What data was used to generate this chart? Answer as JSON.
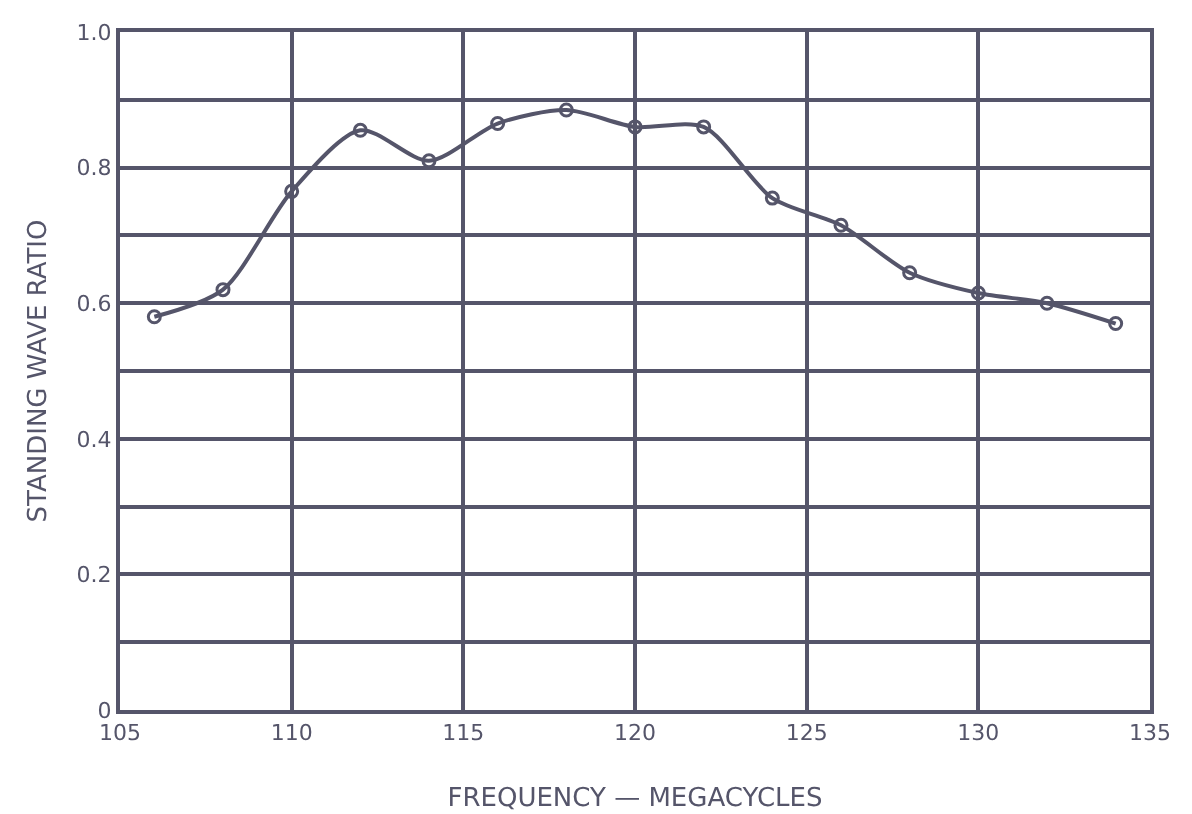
{
  "chart_data": {
    "type": "line",
    "xlabel": "FREQUENCY — MEGACYCLES",
    "ylabel": "STANDING WAVE RATIO",
    "x": [
      106,
      108,
      110,
      112,
      114,
      116,
      118,
      120,
      122,
      124,
      126,
      128,
      130,
      132,
      134
    ],
    "series": [
      {
        "color": "#55556a",
        "values": [
          0.58,
          0.62,
          0.765,
          0.855,
          0.81,
          0.865,
          0.885,
          0.86,
          0.86,
          0.755,
          0.715,
          0.645,
          0.615,
          0.6,
          0.57
        ]
      }
    ],
    "xlim": [
      105,
      135
    ],
    "xticks": [
      105,
      110,
      115,
      120,
      125,
      130,
      135
    ],
    "ylim": [
      0,
      1
    ],
    "yticks": [
      0,
      {
        "value": 0.1,
        "label": null
      },
      0.2,
      {
        "value": 0.3,
        "label": null
      },
      0.4,
      {
        "value": 0.5,
        "label": null
      },
      0.6,
      {
        "value": 0.7,
        "label": null
      },
      0.8,
      {
        "value": 0.9,
        "label": null
      },
      {
        "value": 1,
        "label": "1.0"
      }
    ],
    "grid": true,
    "marker": "circle",
    "line_style": "solid"
  }
}
